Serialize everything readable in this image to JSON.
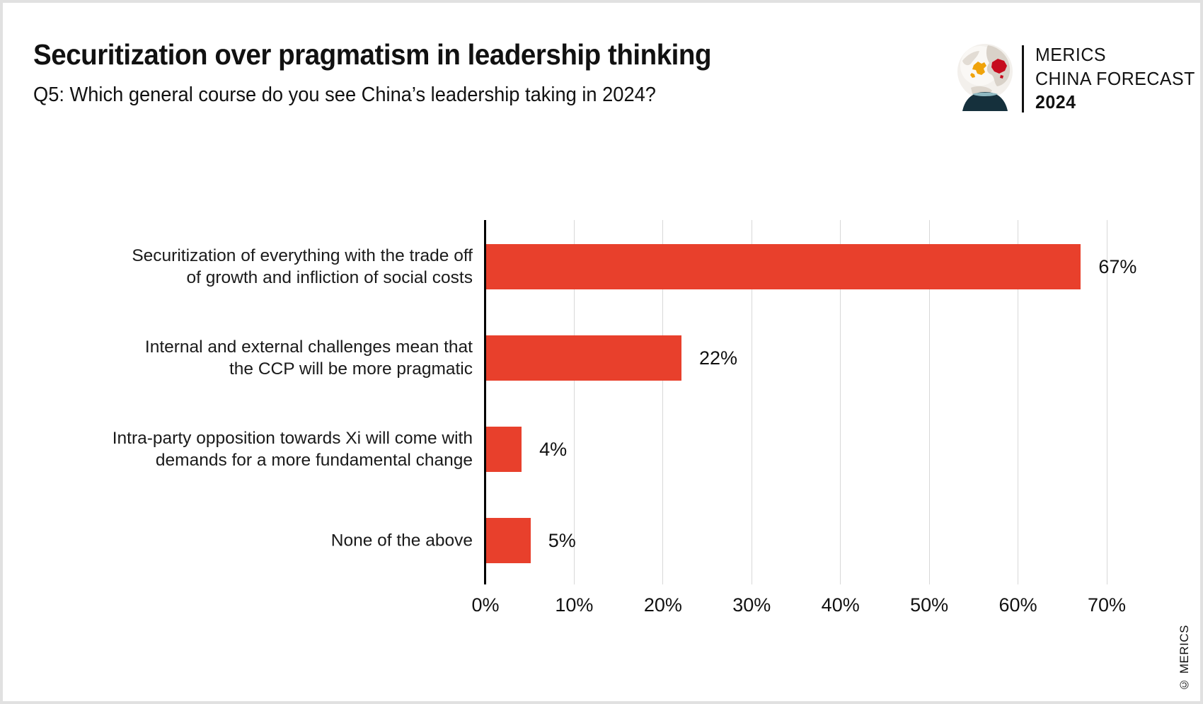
{
  "chart_data": {
    "type": "bar",
    "orientation": "horizontal",
    "title": "Securitization over pragmatism in leadership thinking",
    "subtitle": "Q5: Which general course do you see China’s leadership taking in 2024?",
    "categories": [
      "Securitization of everything with the trade off of growth and infliction of social costs",
      "Internal and external challenges mean that the CCP will be more pragmatic",
      "Intra-party opposition towards Xi will come with demands for a more fundamental change",
      "None of the above"
    ],
    "category_lines": [
      [
        "Securitization of everything with the trade off",
        "of growth and infliction of social costs"
      ],
      [
        "Internal and external challenges mean that",
        "the CCP will be more pragmatic"
      ],
      [
        "Intra-party opposition towards Xi will come with",
        "demands for a more fundamental change"
      ],
      [
        "None of the above"
      ]
    ],
    "values": [
      67,
      22,
      4,
      5
    ],
    "value_labels": [
      "67%",
      "22%",
      "4%",
      "5%"
    ],
    "x_ticks": [
      "0%",
      "10%",
      "20%",
      "30%",
      "40%",
      "50%",
      "60%",
      "70%"
    ],
    "xlim": [
      0,
      70
    ],
    "xlabel": "",
    "ylabel": "",
    "grid": "vertical-gridlines-on",
    "legend": "none"
  },
  "logo": {
    "line1": "MERICS",
    "line2": "CHINA FORECAST",
    "line3": "2024",
    "icon": "snow-globe-icon"
  },
  "footer": {
    "copyright": "© MERICS"
  },
  "colors": {
    "bar": "#e8402c",
    "grid": "#d8d8d8",
    "axis": "#000000",
    "text": "#111111",
    "frame": "#e1e1e1",
    "globe_europe_yellow": "#f0a30a",
    "globe_china_red": "#c60c1e",
    "globe_base_teal": "#15303c",
    "globe_rim_teal": "#8fb9c2",
    "globe_land_gray": "#d9d2c9"
  }
}
